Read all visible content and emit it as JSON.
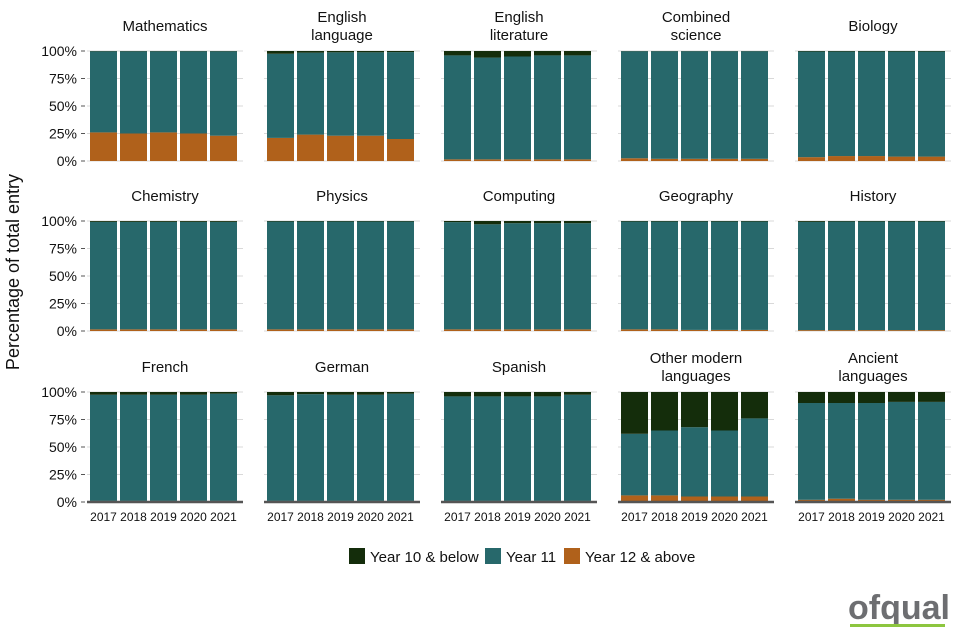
{
  "chart_data": {
    "type": "bar",
    "stacked": true,
    "ylabel": "Percentage of total entry",
    "ylim": [
      0,
      100
    ],
    "yticks": [
      "0%",
      "25%",
      "50%",
      "75%",
      "100%"
    ],
    "categories": [
      "2017",
      "2018",
      "2019",
      "2020",
      "2021"
    ],
    "series_names": [
      "Year 10 & below",
      "Year 11",
      "Year 12 & above"
    ],
    "colors": {
      "Year 10 & below": "#142d0b",
      "Year 11": "#27686b",
      "Year 12 & above": "#b0611b"
    },
    "legend_position": "bottom",
    "grid": true,
    "panels": [
      {
        "title": "Mathematics",
        "year10": [
          0.3,
          0.3,
          0.3,
          0.3,
          0.3
        ],
        "year12": [
          26,
          25,
          26,
          25,
          23
        ]
      },
      {
        "title": "English\nlanguage",
        "year10": [
          2.5,
          1.5,
          1.2,
          1.2,
          1.0
        ],
        "year12": [
          21,
          24,
          23,
          23,
          20
        ]
      },
      {
        "title": "English\nliterature",
        "year10": [
          4,
          6,
          5,
          4,
          4
        ],
        "year12": [
          1.5,
          1.5,
          1.5,
          1.5,
          1.5
        ]
      },
      {
        "title": "Combined\nscience",
        "year10": [
          0.2,
          0.2,
          0.2,
          0.2,
          0.2
        ],
        "year12": [
          2.5,
          2,
          2,
          2,
          2
        ]
      },
      {
        "title": "Biology",
        "year10": [
          0.5,
          0.5,
          0.5,
          0.5,
          0.5
        ],
        "year12": [
          3.5,
          4.5,
          4.5,
          4,
          4
        ]
      },
      {
        "title": "Chemistry",
        "year10": [
          0.8,
          0.8,
          0.8,
          0.8,
          0.8
        ],
        "year12": [
          1.5,
          1.5,
          1.5,
          1.5,
          1.5
        ]
      },
      {
        "title": "Physics",
        "year10": [
          0.5,
          0.5,
          0.5,
          0.5,
          0.5
        ],
        "year12": [
          1.5,
          1.5,
          1.5,
          1.5,
          1.5
        ]
      },
      {
        "title": "Computing",
        "year10": [
          1,
          3,
          2,
          2,
          2
        ],
        "year12": [
          1.5,
          1.5,
          1.5,
          1.5,
          1.5
        ]
      },
      {
        "title": "Geography",
        "year10": [
          0.5,
          0.5,
          0.5,
          0.5,
          0.5
        ],
        "year12": [
          1.5,
          1.5,
          1,
          1,
          1
        ]
      },
      {
        "title": "History",
        "year10": [
          0.8,
          0.5,
          0.5,
          0.5,
          0.5
        ],
        "year12": [
          0.8,
          0.8,
          0.8,
          0.8,
          0.8
        ]
      },
      {
        "title": "French",
        "year10": [
          2.5,
          2.5,
          2.5,
          2.5,
          1.5
        ],
        "year12": [
          1,
          1,
          1,
          1,
          1
        ]
      },
      {
        "title": "German",
        "year10": [
          3,
          2,
          2.5,
          2.5,
          1.5
        ],
        "year12": [
          1,
          1,
          1,
          1,
          1
        ]
      },
      {
        "title": "Spanish",
        "year10": [
          4,
          4,
          4,
          4,
          2.5
        ],
        "year12": [
          1,
          1,
          1,
          1,
          1
        ]
      },
      {
        "title": "Other modern\nlanguages",
        "year10": [
          38,
          35,
          32,
          35,
          24
        ],
        "year12": [
          6,
          6,
          5,
          5,
          5
        ]
      },
      {
        "title": "Ancient\nlanguages",
        "year10": [
          10,
          10,
          10,
          9,
          9
        ],
        "year12": [
          2,
          3,
          2,
          2,
          2
        ]
      }
    ]
  },
  "logo_text": "ofqual"
}
